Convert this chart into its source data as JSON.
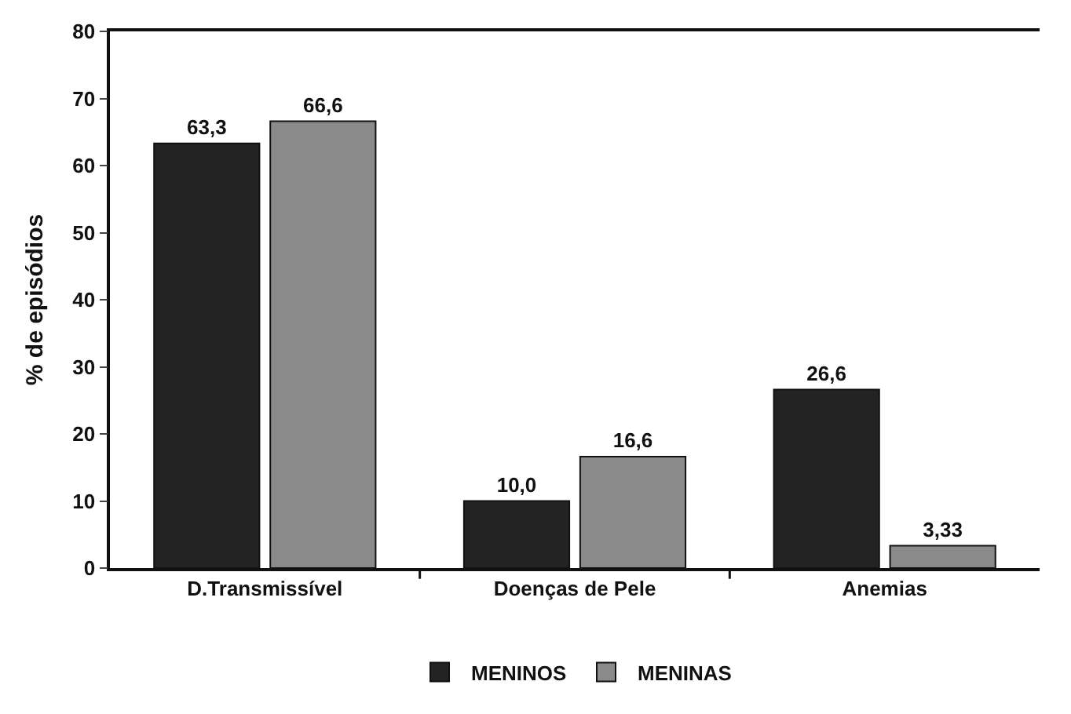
{
  "chart_data": {
    "type": "bar",
    "ylabel": "% de episódios",
    "categories": [
      "D.Transmissível",
      "Doenças de Pele",
      "Anemias"
    ],
    "series": [
      {
        "name": "MENINOS",
        "color": "#232323",
        "values": [
          63.3,
          10.0,
          26.6
        ],
        "value_labels": [
          "63,3",
          "10,0",
          "26,6"
        ]
      },
      {
        "name": "MENINAS",
        "color": "#8a8a8a",
        "values": [
          66.6,
          16.6,
          3.33
        ],
        "value_labels": [
          "66,6",
          "16,6",
          "3,33"
        ]
      }
    ],
    "ylim": [
      0,
      80
    ],
    "yticks": [
      0,
      10,
      20,
      30,
      40,
      50,
      60,
      70,
      80
    ],
    "legend": "bottom"
  }
}
